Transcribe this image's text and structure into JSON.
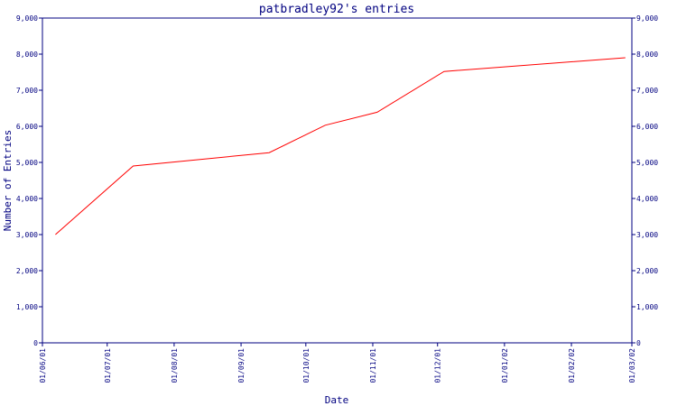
{
  "chart_data": {
    "type": "line",
    "title": "patbradley92's entries",
    "xlabel": "Date",
    "ylabel": "Number of Entries",
    "ylim": [
      0,
      9000
    ],
    "y_ticks": [
      0,
      1000,
      2000,
      3000,
      4000,
      5000,
      6000,
      7000,
      8000,
      9000
    ],
    "y_tick_labels": [
      "0",
      "1,000",
      "2,000",
      "3,000",
      "4,000",
      "5,000",
      "6,000",
      "7,000",
      "8,000",
      "9,000"
    ],
    "right_y_axis": true,
    "x_ticks": [
      "2001-06-01",
      "2001-07-01",
      "2001-08-01",
      "2001-09-01",
      "2001-10-01",
      "2001-11-01",
      "2001-12-01",
      "2002-01-01",
      "2002-02-01",
      "2002-03-01"
    ],
    "x_tick_labels": [
      "01/06/01",
      "01/07/01",
      "01/08/01",
      "01/09/01",
      "01/10/01",
      "01/11/01",
      "01/12/01",
      "01/01/02",
      "01/02/02",
      "01/03/02"
    ],
    "xlim": [
      "2001-06-01",
      "2002-03-01"
    ],
    "grid": false,
    "series": [
      {
        "color": "#ff0000",
        "points": [
          {
            "x": "2001-06-07",
            "y": 3000
          },
          {
            "x": "2001-07-13",
            "y": 4900
          },
          {
            "x": "2001-09-14",
            "y": 5270
          },
          {
            "x": "2001-10-10",
            "y": 6030
          },
          {
            "x": "2001-11-03",
            "y": 6390
          },
          {
            "x": "2001-12-04",
            "y": 7520
          },
          {
            "x": "2002-02-26",
            "y": 7900
          }
        ]
      }
    ]
  }
}
